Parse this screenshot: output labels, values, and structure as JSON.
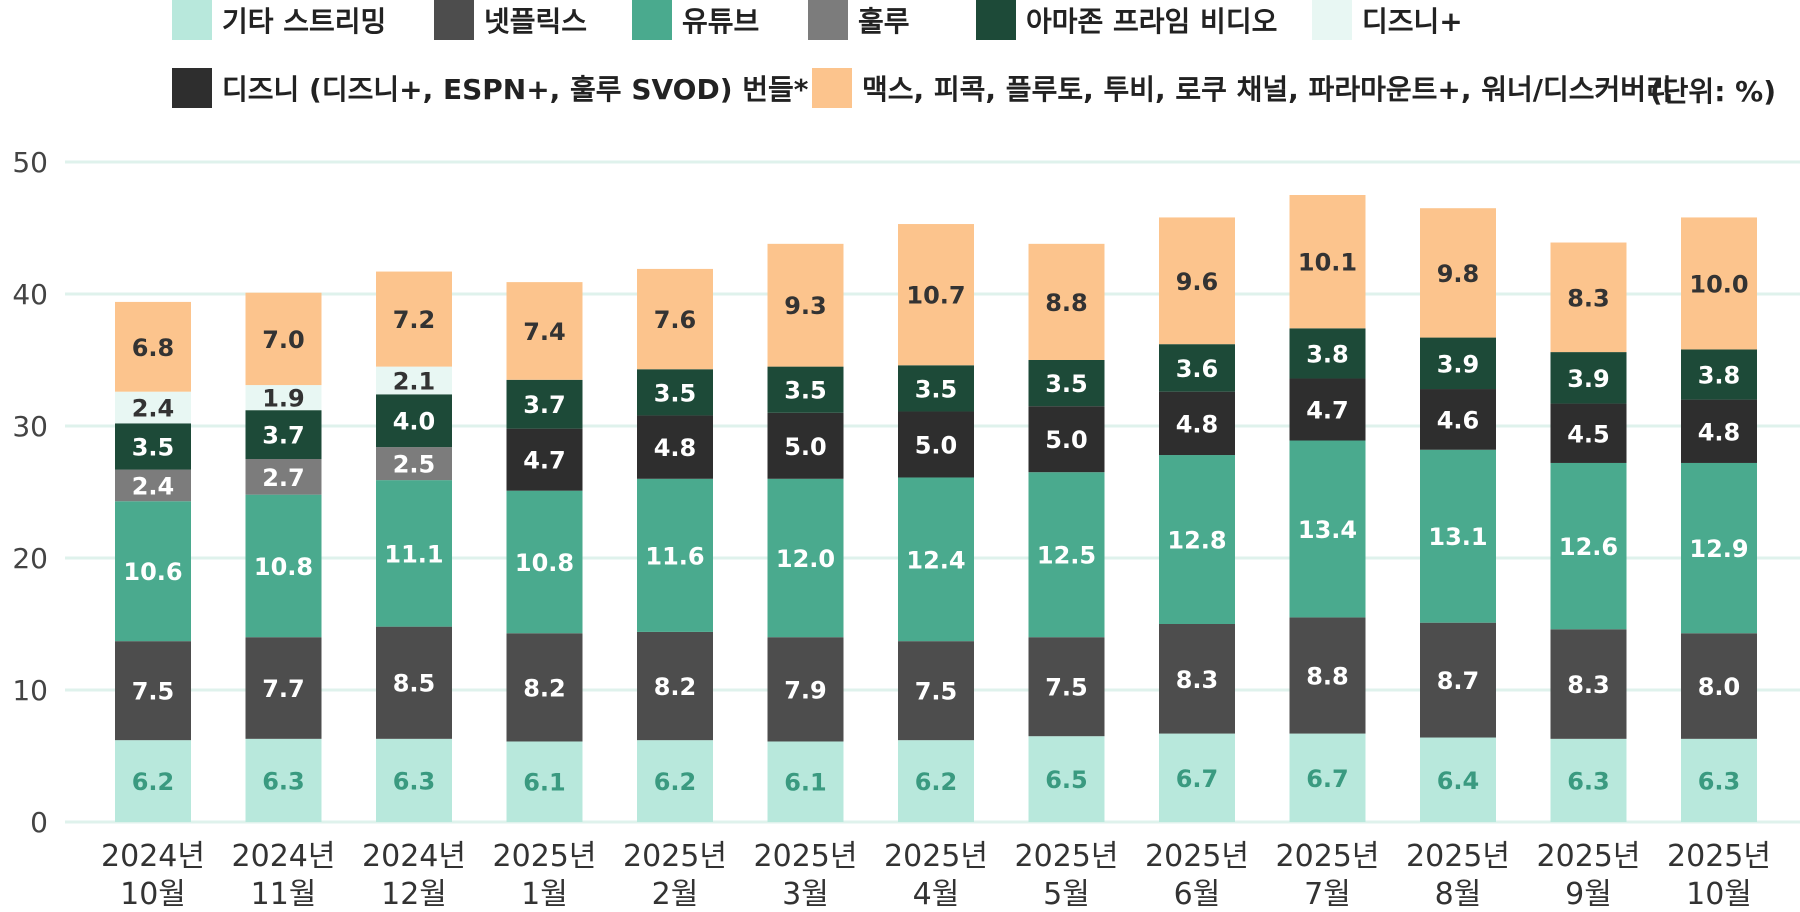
{
  "chart_data": {
    "type": "bar",
    "stacked": true,
    "unit_label": "(단위: %)",
    "categories": [
      [
        "2024년",
        "10월"
      ],
      [
        "2024년",
        "11월"
      ],
      [
        "2024년",
        "12월"
      ],
      [
        "2025년",
        "1월"
      ],
      [
        "2025년",
        "2월"
      ],
      [
        "2025년",
        "3월"
      ],
      [
        "2025년",
        "4월"
      ],
      [
        "2025년",
        "5월"
      ],
      [
        "2025년",
        "6월"
      ],
      [
        "2025년",
        "7월"
      ],
      [
        "2025년",
        "8월"
      ],
      [
        "2025년",
        "9월"
      ],
      [
        "2025년",
        "10월"
      ]
    ],
    "ylim": [
      0,
      50
    ],
    "yticks": [
      0,
      10,
      20,
      30,
      40,
      50
    ],
    "grid": true,
    "series": [
      {
        "name": "기타 스트리밍",
        "color": "#b8e8dc",
        "label_color": "#3a9a80",
        "values": [
          6.2,
          6.3,
          6.3,
          6.1,
          6.2,
          6.1,
          6.2,
          6.5,
          6.7,
          6.7,
          6.4,
          6.3,
          6.3
        ],
        "labels": [
          "6.2",
          "6.3",
          "6.3",
          "6.1",
          "6.2",
          "6.1",
          "6.2",
          "6.5",
          "6.7",
          "6.7",
          "6.4",
          "6.3",
          "6.3"
        ]
      },
      {
        "name": "넷플릭스",
        "color": "#4d4d4d",
        "label_color": "#ffffff",
        "values": [
          7.5,
          7.7,
          8.5,
          8.2,
          8.2,
          7.9,
          7.5,
          7.5,
          8.3,
          8.8,
          8.7,
          8.3,
          8.0
        ],
        "labels": [
          "7.5",
          "7.7",
          "8.5",
          "8.2",
          "8.2",
          "7.9",
          "7.5",
          "7.5",
          "8.3",
          "8.8",
          "8.7",
          "8.3",
          "8.0"
        ]
      },
      {
        "name": "유튜브",
        "color": "#4aaa8e",
        "label_color": "#ffffff",
        "values": [
          10.6,
          10.8,
          11.1,
          10.8,
          11.6,
          12.0,
          12.4,
          12.5,
          12.8,
          13.4,
          13.1,
          12.6,
          12.9
        ],
        "labels": [
          "10.6",
          "10.8",
          "11.1",
          "10.8",
          "11.6",
          "12.0",
          "12.4",
          "12.5",
          "12.8",
          "13.4",
          "13.1",
          "12.6",
          "12.9"
        ]
      },
      {
        "name": "훌루",
        "color": "#7c7c7c",
        "label_color": "#ffffff",
        "values": [
          2.4,
          2.7,
          2.5,
          0,
          0,
          0,
          0,
          0,
          0,
          0,
          0,
          0,
          0
        ],
        "labels": [
          "2.4",
          "2.7",
          "2.5",
          "",
          "",
          "",
          "",
          "",
          "",
          "",
          "",
          "",
          ""
        ]
      },
      {
        "name": "디즈니 (디즈니+, ESPN+, 훌루 SVOD) 번들*",
        "color": "#2e2e2e",
        "label_color": "#ffffff",
        "values": [
          0,
          0,
          0,
          4.7,
          4.8,
          5.0,
          5.0,
          5.0,
          4.8,
          4.7,
          4.6,
          4.5,
          4.8
        ],
        "labels": [
          "",
          "",
          "",
          "4.7",
          "4.8",
          "5.0",
          "5.0",
          "5.0",
          "4.8",
          "4.7",
          "4.6",
          "4.5",
          "4.8"
        ]
      },
      {
        "name": "아마존 프라임 비디오",
        "color": "#1d4a38",
        "label_color": "#ffffff",
        "values": [
          3.5,
          3.7,
          4.0,
          3.7,
          3.5,
          3.5,
          3.5,
          3.5,
          3.6,
          3.8,
          3.9,
          3.9,
          3.8
        ],
        "labels": [
          "3.5",
          "3.7",
          "4.0",
          "3.7",
          "3.5",
          "3.5",
          "3.5",
          "3.5",
          "3.6",
          "3.8",
          "3.9",
          "3.9",
          "3.8"
        ]
      },
      {
        "name": "디즈니+",
        "color": "#e8f7f3",
        "label_color": "#333333",
        "values": [
          2.4,
          1.9,
          2.1,
          0,
          0,
          0,
          0,
          0,
          0,
          0,
          0,
          0,
          0
        ],
        "labels": [
          "2.4",
          "1.9",
          "2.1",
          "",
          "",
          "",
          "",
          "",
          "",
          "",
          "",
          "",
          ""
        ]
      },
      {
        "name": "맥스, 피콕, 플루토, 투비, 로쿠 채널, 파라마운트+, 워너/디스커버리",
        "color": "#fcc48d",
        "label_color": "#333333",
        "values": [
          6.8,
          7.0,
          7.2,
          7.4,
          7.6,
          9.3,
          10.7,
          8.8,
          9.6,
          10.1,
          9.8,
          8.3,
          10.0
        ],
        "labels": [
          "6.8",
          "7.0",
          "7.2",
          "7.4",
          "7.6",
          "9.3",
          "10.7",
          "8.8",
          "9.6",
          "10.1",
          "9.8",
          "8.3",
          "10.0"
        ]
      }
    ],
    "legend_order": [
      0,
      1,
      2,
      3,
      5,
      6,
      4,
      7
    ]
  }
}
